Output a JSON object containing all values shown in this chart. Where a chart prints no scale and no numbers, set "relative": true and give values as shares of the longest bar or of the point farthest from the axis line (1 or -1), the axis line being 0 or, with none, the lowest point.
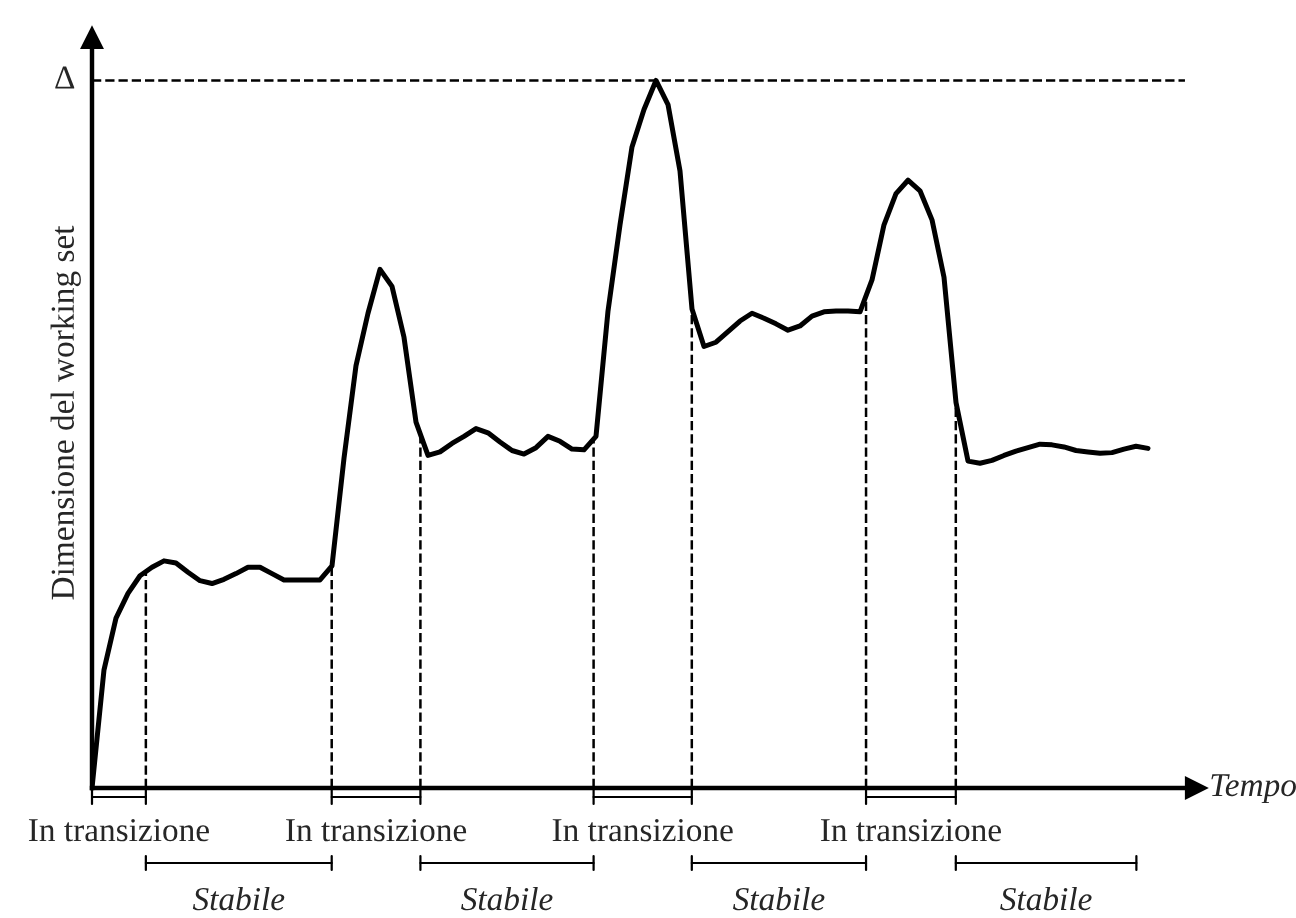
{
  "chart_data": {
    "type": "line",
    "relative": true,
    "xlabel": "Tempo",
    "ylabel": "Dimensione del working set",
    "categories": [
      null,
      null,
      null,
      null,
      null,
      null,
      null,
      null,
      null,
      null,
      null,
      null,
      null,
      null,
      null,
      null,
      null,
      null,
      null,
      null,
      null,
      null,
      null,
      null,
      null,
      null,
      null,
      null,
      null,
      null,
      null,
      null,
      null,
      null,
      null,
      null,
      null,
      null,
      null,
      null,
      null,
      null,
      null,
      null,
      null,
      null,
      null,
      null,
      null,
      null,
      null,
      null,
      null,
      null,
      null,
      null,
      null,
      null,
      null,
      null,
      null,
      null,
      null,
      null,
      null,
      null,
      null,
      null,
      null,
      null,
      null,
      null,
      null,
      null,
      null,
      null,
      null,
      null,
      null,
      null,
      null,
      null,
      null,
      null,
      null,
      null,
      null,
      null,
      null
    ],
    "marker": "none",
    "line_style": "solid",
    "series": [
      {
        "color": "#000000",
        "values": [
          0,
          0.167,
          0.24,
          0.275,
          0.3,
          0.312,
          0.321,
          0.318,
          0.305,
          0.293,
          0.289,
          0.295,
          0.303,
          0.312,
          0.312,
          0.303,
          0.294,
          0.294,
          0.294,
          0.294,
          0.314,
          0.466,
          0.597,
          0.671,
          0.733,
          0.709,
          0.637,
          0.517,
          0.47,
          0.475,
          0.487,
          0.497,
          0.508,
          0.502,
          0.489,
          0.477,
          0.472,
          0.481,
          0.497,
          0.49,
          0.479,
          0.478,
          0.497,
          0.674,
          0.796,
          0.906,
          0.959,
          1,
          0.966,
          0.872,
          0.677,
          0.624,
          0.63,
          0.645,
          0.66,
          0.671,
          0.664,
          0.656,
          0.647,
          0.653,
          0.667,
          0.673,
          0.674,
          0.674,
          0.673,
          0.718,
          0.796,
          0.84,
          0.859,
          0.844,
          0.803,
          0.722,
          0.545,
          0.462,
          0.459,
          0.463,
          0.47,
          0.476,
          0.481,
          0.486,
          0.485,
          0.482,
          0.477,
          0.475,
          0.473,
          0.474,
          0.479,
          0.483,
          0.48
        ]
      }
    ],
    "ref_lines": [
      {
        "axis": "y",
        "value": 1,
        "label": "Δ",
        "line_style": "dashed",
        "color": "#000000"
      }
    ],
    "annotations": [
      "In transizione",
      "Stabile",
      "In transizione",
      "Stabile",
      "In transizione",
      "Stabile",
      "In transizione",
      "Stabile"
    ]
  }
}
